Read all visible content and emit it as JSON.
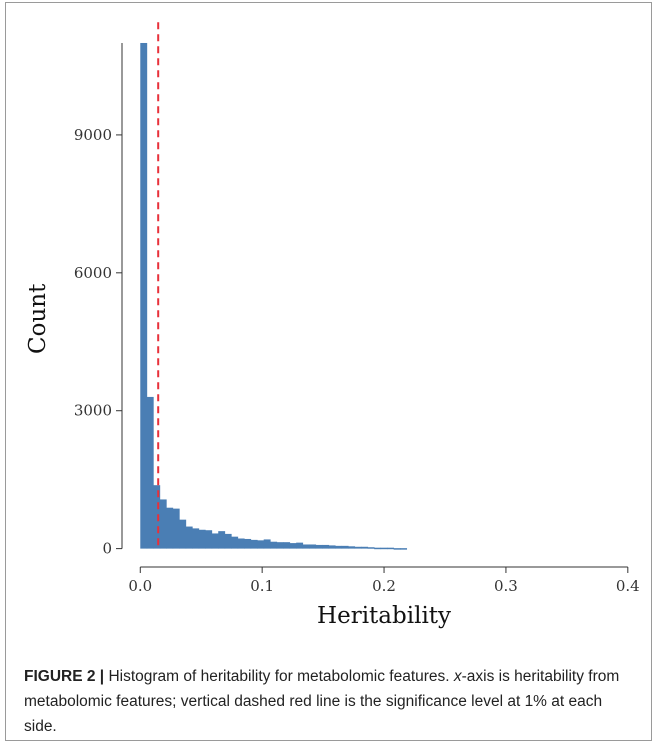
{
  "chart_data": {
    "type": "bar",
    "title": "",
    "xlabel": "Heritability",
    "ylabel": "Count",
    "xlim": [
      -0.015,
      0.41
    ],
    "ylim": [
      -400,
      11500
    ],
    "xticks": [
      0.0,
      0.1,
      0.2,
      0.3,
      0.4
    ],
    "xtick_labels": [
      "0.0",
      "0.1",
      "0.2",
      "0.3",
      "0.4"
    ],
    "yticks": [
      0,
      3000,
      6000,
      9000
    ],
    "ytick_labels": [
      "0",
      "3000",
      "6000",
      "9000"
    ],
    "bin_width": 0.00533,
    "bin_start": 0.0,
    "values": [
      11000,
      3300,
      1380,
      1070,
      890,
      870,
      630,
      480,
      440,
      410,
      400,
      330,
      380,
      320,
      260,
      220,
      210,
      190,
      180,
      200,
      150,
      140,
      140,
      120,
      130,
      90,
      90,
      80,
      80,
      70,
      60,
      60,
      50,
      40,
      40,
      30,
      20,
      20,
      20,
      10,
      10
    ],
    "threshold": {
      "x": 0.0147,
      "style": "dashed",
      "color": "#e8303a"
    },
    "bar_color": "#4a7eb4",
    "grid": false
  },
  "caption": {
    "label": "FIGURE 2 |",
    "text_1": " Histogram of heritability for metabolomic features. ",
    "x_italic": "x",
    "text_2": "-axis is heritability from metabolomic features; vertical dashed red line is the significance level at 1% at each side."
  }
}
